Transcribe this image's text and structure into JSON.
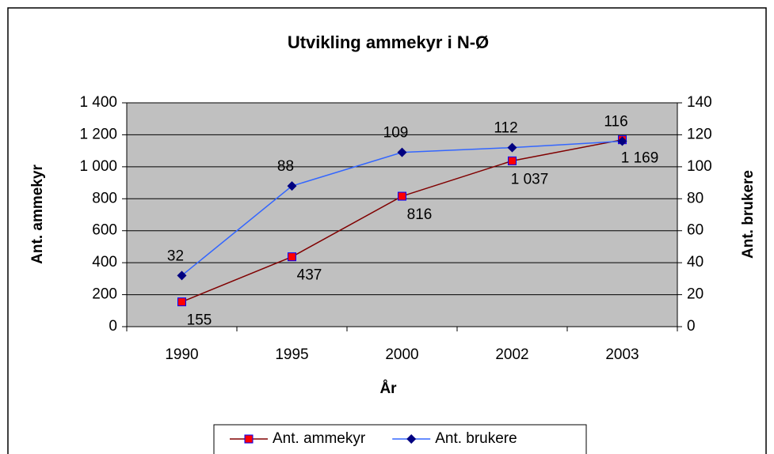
{
  "chart_data": {
    "type": "line",
    "title": "Utvikling ammekyr i N-Ø",
    "x_label": "År",
    "y_label": "Ant. ammekyr",
    "y2_label": "Ant. brukere",
    "categories": [
      "1990",
      "1995",
      "2000",
      "2002",
      "2003"
    ],
    "series": [
      {
        "name": "Ant. ammekyr",
        "color": "#800000",
        "marker_color": "#ff0000",
        "values": [
          155,
          437,
          816,
          1037,
          1169
        ],
        "value_labels": [
          "155",
          "437",
          "816",
          "1 037",
          "1 169"
        ]
      },
      {
        "name": "Ant. brukere",
        "color": "#3366ff",
        "marker_color": "#000080",
        "axis": "y2",
        "values": [
          32,
          88,
          109,
          112,
          116
        ]
      }
    ],
    "ylim": [
      0,
      1400
    ],
    "yticks": [
      0,
      200,
      400,
      600,
      800,
      {
        "value": 1000,
        "label": "1 000"
      },
      {
        "value": 1200,
        "label": "1 200"
      },
      {
        "value": 1400,
        "label": "1 400"
      }
    ],
    "y2lim": [
      0,
      140
    ],
    "y2ticks": [
      0,
      20,
      40,
      60,
      80,
      100,
      120,
      140
    ],
    "grid": true,
    "legend": "bottom"
  }
}
